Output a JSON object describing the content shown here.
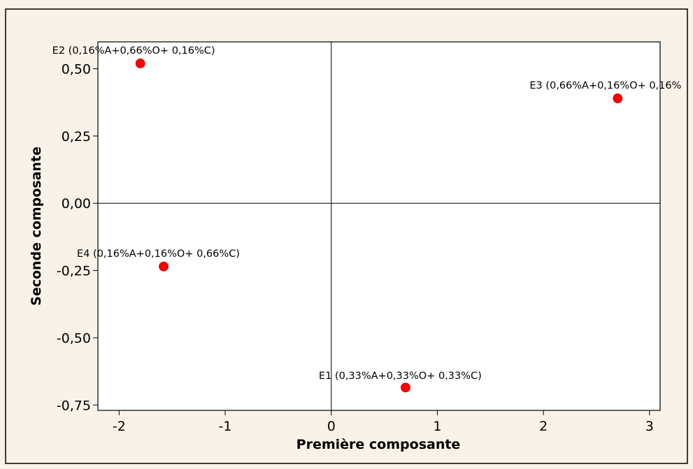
{
  "chart_data": {
    "type": "scatter",
    "xlabel": "Première composante",
    "ylabel": "Seconde composante",
    "xlim": [
      -2.2,
      3.1
    ],
    "ylim": [
      -0.77,
      0.6
    ],
    "x_ticks": [
      -2,
      -1,
      0,
      1,
      2,
      3
    ],
    "y_ticks": [
      -0.75,
      -0.5,
      -0.25,
      0,
      0.25,
      0.5
    ],
    "x_tick_labels": [
      "-2",
      "-1",
      "0",
      "1",
      "2",
      "3"
    ],
    "y_tick_labels": [
      "-0,75",
      "-0,50",
      "-0,25",
      "0,00",
      "0,25",
      "0,50"
    ],
    "reference_lines": {
      "x": 0,
      "y": 0
    },
    "grid": false,
    "marker_color": "#ff0000",
    "points": [
      {
        "label": "E1 (0,33%A+0,33%O+ 0,33%C)",
        "x": 0.7,
        "y": -0.685
      },
      {
        "label": "E2  (0,16%A+0,66%O+ 0,16%C)",
        "x": -1.8,
        "y": 0.52
      },
      {
        "label": "E3  (0,66%A+0,16%O+ 0,16%",
        "x": 2.7,
        "y": 0.39
      },
      {
        "label": "E4 (0,16%A+0,16%O+ 0,66%C)",
        "x": -1.58,
        "y": -0.235
      }
    ]
  }
}
